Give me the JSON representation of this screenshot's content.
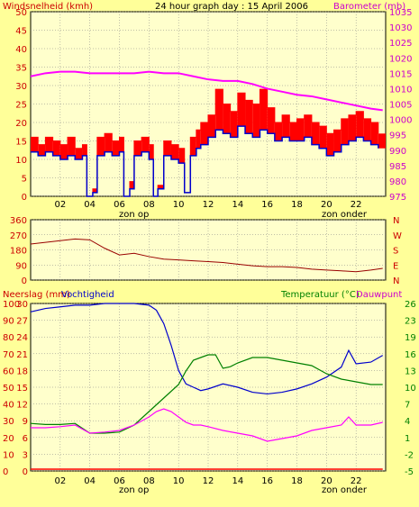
{
  "colors": {
    "background": "#ffff99",
    "frame": "#ffffcc",
    "grid": "#808080",
    "wind_gust": "#ff0000",
    "wind_avg": "#0000cc",
    "barometer": "#ff00ff",
    "wind_dir": "#990000",
    "humidity": "#0000cc",
    "temperature": "#008000",
    "dewpoint": "#ff00ff",
    "rain": "#ff0000",
    "label_red": "#cc0000",
    "label_magenta": "#cc00cc",
    "label_green": "#008000"
  },
  "hours": [
    "02",
    "04",
    "06",
    "08",
    "10",
    "12",
    "14",
    "16",
    "18",
    "20",
    "22"
  ],
  "markers": {
    "sunrise": "zon op",
    "sunset": "zon onder"
  },
  "chart_data": [
    {
      "type": "line",
      "title": "24 hour graph day : 15 April 2006",
      "left_axis_label": "Windsnelheid (kmh)",
      "right_axis_label": "Barometer (mb)",
      "xlim": [
        0,
        24
      ],
      "ylim_left": [
        0,
        50
      ],
      "ylim_right": [
        975,
        1035
      ],
      "left_ticks": [
        0,
        5,
        10,
        15,
        20,
        25,
        30,
        35,
        40,
        45,
        50
      ],
      "right_ticks": [
        975,
        980,
        985,
        990,
        995,
        1000,
        1005,
        1010,
        1015,
        1020,
        1025,
        1030,
        1035
      ],
      "series": [
        {
          "key": "gust",
          "axis": "left",
          "x": [
            0.0,
            0.5,
            1.0,
            1.5,
            2.0,
            2.5,
            3.0,
            3.5,
            3.8,
            4.2,
            4.5,
            5.0,
            5.5,
            6.0,
            6.3,
            6.7,
            7.0,
            7.5,
            8.0,
            8.3,
            8.6,
            9.0,
            9.5,
            10.0,
            10.4,
            10.8,
            11.2,
            11.5,
            12.0,
            12.5,
            13.0,
            13.5,
            14.0,
            14.5,
            15.0,
            15.5,
            16.0,
            16.5,
            17.0,
            17.5,
            18.0,
            18.5,
            19.0,
            19.5,
            20.0,
            20.5,
            21.0,
            21.5,
            22.0,
            22.5,
            23.0,
            23.5
          ],
          "y": [
            16,
            14,
            16,
            15,
            14,
            16,
            13,
            14,
            0,
            2,
            16,
            17,
            15,
            16,
            0,
            4,
            15,
            16,
            14,
            0,
            3,
            15,
            14,
            13,
            1,
            16,
            18,
            20,
            22,
            29,
            25,
            23,
            28,
            26,
            25,
            29,
            24,
            20,
            22,
            20,
            21,
            22,
            20,
            19,
            17,
            18,
            21,
            22,
            23,
            21,
            20,
            17
          ]
        },
        {
          "key": "avg",
          "axis": "left",
          "x": [
            0.0,
            0.5,
            1.0,
            1.5,
            2.0,
            2.5,
            3.0,
            3.5,
            3.8,
            4.2,
            4.5,
            5.0,
            5.5,
            6.0,
            6.3,
            6.7,
            7.0,
            7.5,
            8.0,
            8.3,
            8.6,
            9.0,
            9.5,
            10.0,
            10.4,
            10.8,
            11.2,
            11.5,
            12.0,
            12.5,
            13.0,
            13.5,
            14.0,
            14.5,
            15.0,
            15.5,
            16.0,
            16.5,
            17.0,
            17.5,
            18.0,
            18.5,
            19.0,
            19.5,
            20.0,
            20.5,
            21.0,
            21.5,
            22.0,
            22.5,
            23.0,
            23.5
          ],
          "y": [
            12,
            11,
            12,
            11,
            10,
            11,
            10,
            11,
            0,
            1,
            11,
            12,
            11,
            12,
            0,
            2,
            11,
            12,
            10,
            0,
            2,
            11,
            10,
            9,
            1,
            11,
            13,
            14,
            16,
            18,
            17,
            16,
            19,
            17,
            16,
            18,
            17,
            15,
            16,
            15,
            15,
            16,
            14,
            13,
            11,
            12,
            14,
            15,
            16,
            15,
            14,
            13
          ]
        },
        {
          "key": "baro",
          "axis": "right",
          "x": [
            0,
            1,
            2,
            3,
            4,
            5,
            6,
            7,
            8,
            9,
            10,
            11,
            12,
            13,
            14,
            15,
            16,
            17,
            18,
            19,
            20,
            21,
            22,
            23,
            23.8
          ],
          "y": [
            1014,
            1015,
            1015.5,
            1015.5,
            1015,
            1015,
            1015,
            1015,
            1015.5,
            1015,
            1015,
            1014,
            1013,
            1012.5,
            1012.5,
            1011.5,
            1010,
            1009,
            1008,
            1007.5,
            1006.5,
            1005.5,
            1004.5,
            1003.5,
            1003
          ]
        }
      ]
    },
    {
      "type": "line",
      "left_ticks": [
        0,
        90,
        180,
        270,
        360
      ],
      "right_ticks": [
        "N",
        "W",
        "S",
        "E",
        "N"
      ],
      "right_tick_values": [
        360,
        270,
        180,
        90,
        0
      ],
      "ylim": [
        0,
        360
      ],
      "xlim": [
        0,
        24
      ],
      "series": [
        {
          "key": "dir",
          "x": [
            0,
            1,
            2,
            3,
            4,
            5,
            6,
            7,
            8,
            9,
            10,
            11,
            12,
            13,
            14,
            15,
            16,
            17,
            18,
            19,
            20,
            21,
            22,
            23,
            23.8
          ],
          "y": [
            215,
            225,
            235,
            245,
            240,
            190,
            150,
            160,
            140,
            125,
            120,
            115,
            110,
            105,
            95,
            85,
            80,
            80,
            75,
            65,
            60,
            55,
            50,
            60,
            70
          ]
        }
      ]
    },
    {
      "type": "line",
      "left_axis_label": "Neerslag (mm)",
      "left_axis_label_2": "Vochtigheid",
      "right_axis_label": "Temperatuur (°C)",
      "right_axis_label_2": "Dauwpunt",
      "xlim": [
        0,
        24
      ],
      "ylim_left": [
        0,
        100
      ],
      "ylim_right": [
        -5,
        26
      ],
      "left_ticks": [
        0,
        10,
        20,
        30,
        40,
        50,
        60,
        70,
        80,
        90,
        100
      ],
      "left_ticks_2": [
        0,
        3,
        6,
        9,
        12,
        15,
        18,
        21,
        24,
        27,
        30
      ],
      "right_ticks": [
        -5,
        -2,
        1,
        4,
        7,
        10,
        13,
        16,
        19,
        23,
        26
      ],
      "series": [
        {
          "key": "humidity",
          "axis": "left",
          "x": [
            0,
            1,
            2,
            3,
            4,
            5,
            6,
            7,
            8,
            8.5,
            9,
            9.5,
            10,
            10.5,
            11,
            11.5,
            12,
            13,
            14,
            15,
            16,
            17,
            18,
            19,
            20,
            21,
            21.5,
            22,
            23,
            23.8
          ],
          "y": [
            95,
            97,
            98,
            99,
            99,
            100,
            100,
            100,
            99,
            96,
            88,
            75,
            60,
            52,
            50,
            48,
            49,
            52,
            50,
            47,
            46,
            47,
            49,
            52,
            56,
            62,
            72,
            64,
            65,
            69
          ]
        },
        {
          "key": "temperature",
          "axis": "right",
          "x": [
            0,
            1,
            2,
            3,
            4,
            5,
            6,
            7,
            8,
            9,
            10,
            10.5,
            11,
            11.5,
            12,
            12.5,
            13,
            13.5,
            14,
            15,
            16,
            17,
            18,
            19,
            20,
            21,
            22,
            23,
            23.8
          ],
          "y": [
            3.8,
            3.6,
            3.6,
            3.8,
            2.0,
            2.0,
            2.2,
            3.5,
            6.0,
            8.5,
            11,
            13.5,
            15.5,
            16,
            16.5,
            16.5,
            14,
            14.3,
            15,
            16,
            16,
            15.5,
            15,
            14.5,
            13,
            12,
            11.5,
            11,
            11
          ]
        },
        {
          "key": "dewpoint",
          "axis": "right",
          "x": [
            0,
            1,
            2,
            3,
            4,
            5,
            6,
            7,
            8,
            8.5,
            9,
            9.5,
            10,
            10.5,
            11,
            11.5,
            12,
            13,
            14,
            15,
            16,
            17,
            18,
            19,
            20,
            21,
            21.5,
            22,
            23,
            23.8
          ],
          "y": [
            3.0,
            3.0,
            3.2,
            3.5,
            2.0,
            2.2,
            2.5,
            3.5,
            5.0,
            6.0,
            6.5,
            6.0,
            5.0,
            4.0,
            3.5,
            3.5,
            3.2,
            2.5,
            2.0,
            1.5,
            0.5,
            1.0,
            1.5,
            2.5,
            3.0,
            3.5,
            5.0,
            3.5,
            3.5,
            4.0
          ]
        },
        {
          "key": "rain",
          "axis": "left2",
          "x": [
            0,
            23.8
          ],
          "y": [
            0,
            0
          ]
        }
      ]
    }
  ]
}
